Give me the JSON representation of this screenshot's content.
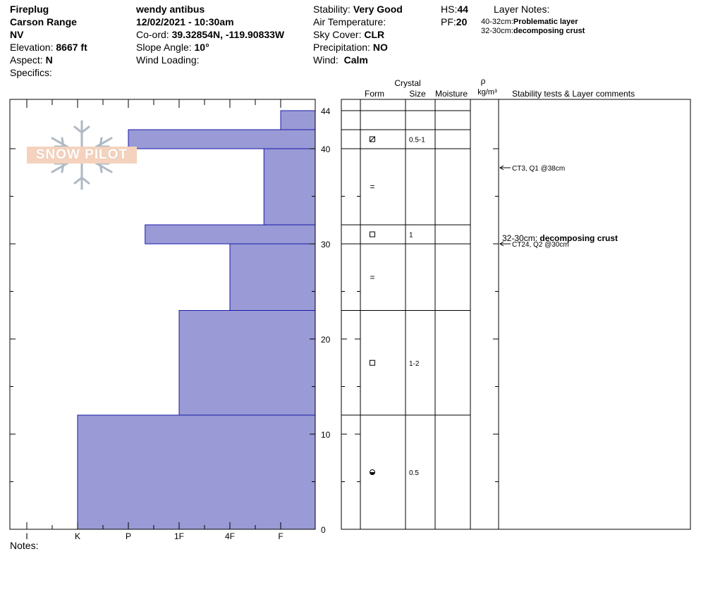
{
  "header": {
    "location_name": "Fireplug",
    "range": "Carson Range",
    "state": "NV",
    "elevation_label": "Elevation:",
    "elevation_value": "8667 ft",
    "aspect_label": "Aspect:",
    "aspect_value": "N",
    "specifics_label": "Specifics:",
    "observer": "wendy antibus",
    "datetime": "12/02/2021 - 10:30am",
    "coord_label": "Co-ord:",
    "coord_value": "39.32854N, -119.90833W",
    "slope_label": "Slope Angle:",
    "slope_value": "10°",
    "wind_loading_label": "Wind Loading:",
    "stability_label": "Stability:",
    "stability_value": "Very Good",
    "air_temp_label": "Air Temperature:",
    "sky_label": "Sky Cover:",
    "sky_value": "CLR",
    "precip_label": "Precipitation:",
    "precip_value": "NO",
    "wind_label": "Wind:",
    "wind_value": "Calm",
    "hs_label": "HS:",
    "hs_value": "44",
    "pf_label": "PF:",
    "pf_value": "20",
    "layer_notes_title": "Layer Notes:",
    "layer_notes": [
      {
        "range": "40-32cm:",
        "text": "Problematic layer"
      },
      {
        "range": "32-30cm:",
        "text": "decomposing crust"
      }
    ]
  },
  "logo_text": "SNOW PILOT",
  "columns": {
    "crystal": "Crystal",
    "form": "Form",
    "size": "Size",
    "moisture": "Moisture",
    "rho": "ρ",
    "density_unit": "kg/m³",
    "comments": "Stability tests & Layer comments"
  },
  "notes_label": "Notes:",
  "chart_data": {
    "type": "bar",
    "orientation": "horizontal",
    "title": "",
    "ylabel": "",
    "xlabel": "",
    "y_range_cm": [
      0,
      44
    ],
    "y_ticks": [
      0,
      10,
      20,
      30,
      40,
      44
    ],
    "hardness_scale": [
      "I",
      "K",
      "P",
      "1F",
      "4F",
      "F"
    ],
    "hardness_scale_note": "x axis reversed: F at right near axis, I at far left",
    "layers": [
      {
        "top": 44,
        "bottom": 42,
        "hardness": "F"
      },
      {
        "top": 42,
        "bottom": 40,
        "hardness": "P"
      },
      {
        "top": 40,
        "bottom": 32,
        "hardness": "F+"
      },
      {
        "top": 32,
        "bottom": 30,
        "hardness": "P-"
      },
      {
        "top": 30,
        "bottom": 23,
        "hardness": "4F"
      },
      {
        "top": 23,
        "bottom": 12,
        "hardness": "1F"
      },
      {
        "top": 12,
        "bottom": 0,
        "hardness": "K"
      }
    ],
    "hardness_index": {
      "F-": 0.67,
      "F": 1,
      "F+": 1.33,
      "4F-": 1.67,
      "4F": 2,
      "4F+": 2.33,
      "1F-": 2.67,
      "1F": 3,
      "1F+": 3.33,
      "P-": 3.67,
      "P": 4,
      "P+": 4.33,
      "K-": 4.67,
      "K": 5,
      "K+": 5.33,
      "I": 6
    },
    "grain_layers": [
      {
        "top": 42,
        "bottom": 40,
        "form": "faceted-rounded",
        "size": "0.5-1"
      },
      {
        "top": 40,
        "bottom": 32,
        "form": "=",
        "size": ""
      },
      {
        "top": 32,
        "bottom": 30,
        "form": "faceted",
        "size": "1"
      },
      {
        "top": 30,
        "bottom": 23,
        "form": "=",
        "size": ""
      },
      {
        "top": 23,
        "bottom": 12,
        "form": "faceted",
        "size": "1-2"
      },
      {
        "top": 12,
        "bottom": 0,
        "form": "rounded-melt",
        "size": "0.5"
      }
    ],
    "stability_tests": [
      {
        "depth": 38,
        "text": "CT3, Q1 @38cm"
      },
      {
        "depth": 30,
        "text": "CT24, Q2 @30cm"
      }
    ],
    "layer_comment": {
      "depth": 30,
      "range": "32-30cm:",
      "text": "decomposing crust"
    }
  }
}
